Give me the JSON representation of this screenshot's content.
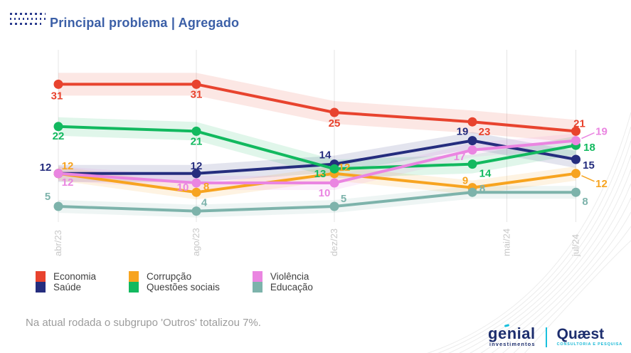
{
  "header": {
    "title": "Principal problema | Agregado"
  },
  "chart_data": {
    "type": "line",
    "title": "Principal problema | Agregado",
    "x_tick_labels": [
      "abr/23",
      "ago/23",
      "dez/23",
      "mai/24",
      "jul/24"
    ],
    "x_tick_months": [
      0,
      4,
      8,
      13,
      15
    ],
    "x_data_months": [
      0,
      4,
      8,
      12,
      15
    ],
    "ylim": [
      0,
      38
    ],
    "grid": "vertical-only",
    "legend_position": "bottom",
    "series": [
      {
        "name": "Economia",
        "color": "#e8432e",
        "values": [
          31,
          31,
          25,
          23,
          21
        ]
      },
      {
        "name": "Saúde",
        "color": "#252d7e",
        "values": [
          12,
          12,
          14,
          19,
          15
        ]
      },
      {
        "name": "Corrupção",
        "color": "#f7a420",
        "values": [
          12,
          8,
          12,
          9,
          12
        ]
      },
      {
        "name": "Questões sociais",
        "color": "#12b95f",
        "values": [
          22,
          21,
          13,
          14,
          18
        ]
      },
      {
        "name": "Violência",
        "color": "#ea85e1",
        "values": [
          12,
          10,
          10,
          17,
          19
        ]
      },
      {
        "name": "Educação",
        "color": "#7db3ab",
        "values": [
          5,
          4,
          5,
          8,
          8
        ]
      }
    ]
  },
  "footer": {
    "note": "Na atual rodada o subgrupo 'Outros' totalizou 7%."
  },
  "branding": {
    "genial_name": "genial",
    "genial_sub": "investimentos",
    "quaest_name": "Quæst",
    "quaest_sub": "CONSULTORIA E PESQUISA"
  }
}
